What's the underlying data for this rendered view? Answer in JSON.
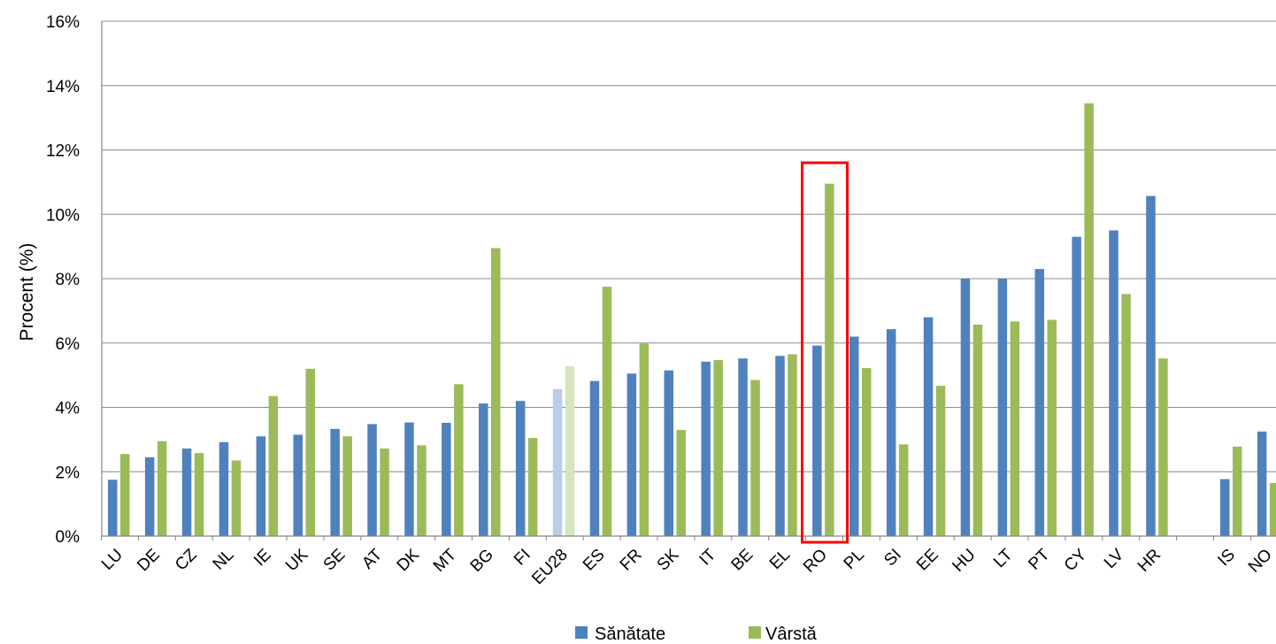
{
  "chart_data": {
    "type": "bar",
    "ylabel": "Procent  (%)",
    "ylim": [
      0,
      16
    ],
    "yticks": [
      "0%",
      "2%",
      "4%",
      "6%",
      "8%",
      "10%",
      "12%",
      "14%",
      "16%"
    ],
    "grid": true,
    "legend_position": "bottom-center",
    "categories": [
      "LU",
      "DE",
      "CZ",
      "NL",
      "IE",
      "UK",
      "SE",
      "AT",
      "DK",
      "MT",
      "BG",
      "FI",
      "EU28",
      "ES",
      "FR",
      "SK",
      "IT",
      "BE",
      "EL",
      "RO",
      "PL",
      "SI",
      "EE",
      "HU",
      "LT",
      "PT",
      "CY",
      "LV",
      "HR",
      "",
      "IS",
      "NO"
    ],
    "highlighted_category": "EU28",
    "boxed_category": "RO",
    "series": [
      {
        "name": "Sănătate",
        "color": "#4f81bd",
        "highlight_color": "#b9cde5",
        "values": [
          1.75,
          2.45,
          2.72,
          2.92,
          3.1,
          3.15,
          3.33,
          3.48,
          3.53,
          3.52,
          4.12,
          4.2,
          4.57,
          4.82,
          5.05,
          5.15,
          5.42,
          5.52,
          5.6,
          5.92,
          6.2,
          6.43,
          6.8,
          8.0,
          8.0,
          8.3,
          9.3,
          9.5,
          10.57,
          null,
          1.77,
          3.25
        ]
      },
      {
        "name": "Vârstă",
        "color": "#9bbb59",
        "highlight_color": "#d7e4bd",
        "values": [
          2.55,
          2.95,
          2.58,
          2.35,
          4.35,
          5.2,
          3.1,
          2.72,
          2.82,
          4.72,
          8.95,
          3.05,
          5.28,
          7.75,
          5.98,
          3.3,
          5.47,
          4.85,
          5.65,
          10.95,
          5.22,
          2.85,
          4.67,
          6.57,
          6.67,
          6.72,
          13.45,
          7.52,
          5.52,
          null,
          2.78,
          1.65
        ]
      }
    ],
    "highlight_box_color": "#ff0000"
  }
}
